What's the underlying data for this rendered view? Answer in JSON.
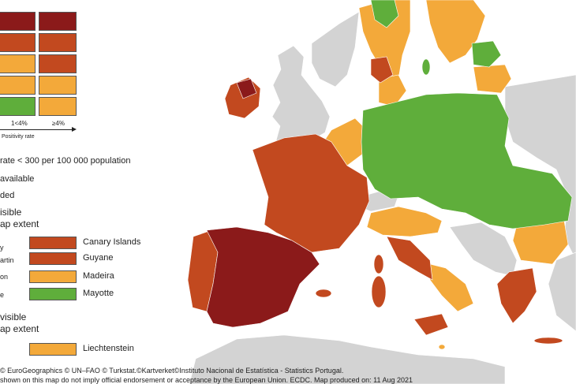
{
  "colors": {
    "dark_red": "#8b1a1a",
    "red": "#c2491f",
    "orange": "#f3a93a",
    "green": "#5fae3b",
    "grey": "#d3d3d3",
    "sea": "#ffffff",
    "border": "#444444"
  },
  "legend": {
    "matrix": [
      [
        "dark_red",
        "dark_red"
      ],
      [
        "red",
        "red"
      ],
      [
        "orange",
        "red"
      ],
      [
        "orange",
        "orange"
      ],
      [
        "green",
        "orange"
      ]
    ],
    "col_low": "1<4%",
    "col_high": "≥4%",
    "axis_label": "Positivity rate",
    "line1": "rate < 300 per 100 000 population",
    "line2": "available",
    "line3": "ded"
  },
  "outermost_visible": {
    "heading1": "isible",
    "heading2": "ap extent",
    "left_fragments": [
      "y",
      "artin",
      "on",
      "e"
    ],
    "items": [
      {
        "label": "Canary Islands",
        "color": "red"
      },
      {
        "label": "Guyane",
        "color": "red"
      },
      {
        "label": "Madeira",
        "color": "orange"
      },
      {
        "label": "Mayotte",
        "color": "green"
      }
    ]
  },
  "non_visible": {
    "heading1": "visible",
    "heading2": "ap extent",
    "items": [
      {
        "label": "Liechtenstein",
        "color": "orange"
      }
    ]
  },
  "footer": {
    "line1": "© EuroGeographics © UN–FAO © Turkstat.©Kartverket©Instituto Nacional de Estatística - Statistics Portugal.",
    "line2": "shown on this map do not imply official endorsement or acceptance by the European Union. ECDC. Map produced on: 11 Aug 2021"
  }
}
